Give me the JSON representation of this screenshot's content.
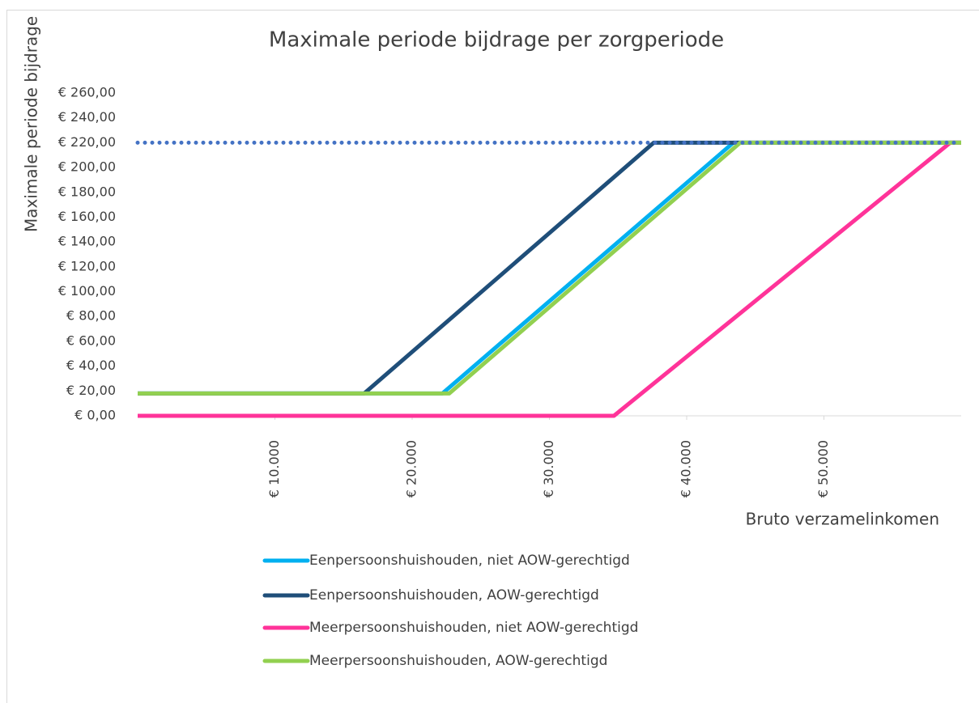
{
  "chart_data": {
    "type": "line",
    "title": "Maximale periode bijdrage per zorgperiode",
    "y_label": "Maximale periode bijdrage",
    "x_label": "Bruto verzamelinkomen",
    "xlim": [
      0,
      60000
    ],
    "ylim": [
      0,
      260
    ],
    "xticks": [
      {
        "value": 10000,
        "label": "€ 10.000"
      },
      {
        "value": 20000,
        "label": "€ 20.000"
      },
      {
        "value": 30000,
        "label": "€ 30.000"
      },
      {
        "value": 40000,
        "label": "€ 40.000"
      },
      {
        "value": 50000,
        "label": "€ 50.000"
      }
    ],
    "yticks": [
      {
        "value": 0,
        "label": "€ 0,00"
      },
      {
        "value": 20,
        "label": "€ 20,00"
      },
      {
        "value": 40,
        "label": "€ 40,00"
      },
      {
        "value": 60,
        "label": "€ 60,00"
      },
      {
        "value": 80,
        "label": "€ 80,00"
      },
      {
        "value": 100,
        "label": "€ 100,00"
      },
      {
        "value": 120,
        "label": "€ 120,00"
      },
      {
        "value": 140,
        "label": "€ 140,00"
      },
      {
        "value": 160,
        "label": "€ 160,00"
      },
      {
        "value": 180,
        "label": "€ 180,00"
      },
      {
        "value": 200,
        "label": "€ 200,00"
      },
      {
        "value": 220,
        "label": "€ 220,00"
      },
      {
        "value": 240,
        "label": "€ 240,00"
      },
      {
        "value": 260,
        "label": "€ 260,00"
      }
    ],
    "series": [
      {
        "name": "Eenpersoonshuishouden, niet AOW-gerechtigd",
        "color": "#00b0f0",
        "x": [
          0,
          22200,
          43400,
          60000
        ],
        "values": [
          18,
          18,
          220,
          220
        ]
      },
      {
        "name": "Eenpersoonshuishouden, AOW-gerechtigd",
        "color": "#1f4e79",
        "x": [
          0,
          16500,
          37600,
          60000
        ],
        "values": [
          18,
          18,
          220,
          220
        ]
      },
      {
        "name": "Meerpersoonshuishouden, niet AOW-gerechtigd",
        "color": "#ff3399",
        "x": [
          0,
          34700,
          59200,
          60000
        ],
        "values": [
          0,
          0,
          220,
          220
        ]
      },
      {
        "name": "Meerpersoonshuishouden, AOW-gerechtigd",
        "color": "#92d050",
        "x": [
          0,
          22700,
          43900,
          60000
        ],
        "values": [
          18,
          18,
          220,
          220
        ]
      }
    ],
    "reference_line": {
      "value": 220,
      "color": "#4472c4",
      "style": "dotted"
    },
    "grid": false,
    "legend": "bottom"
  }
}
